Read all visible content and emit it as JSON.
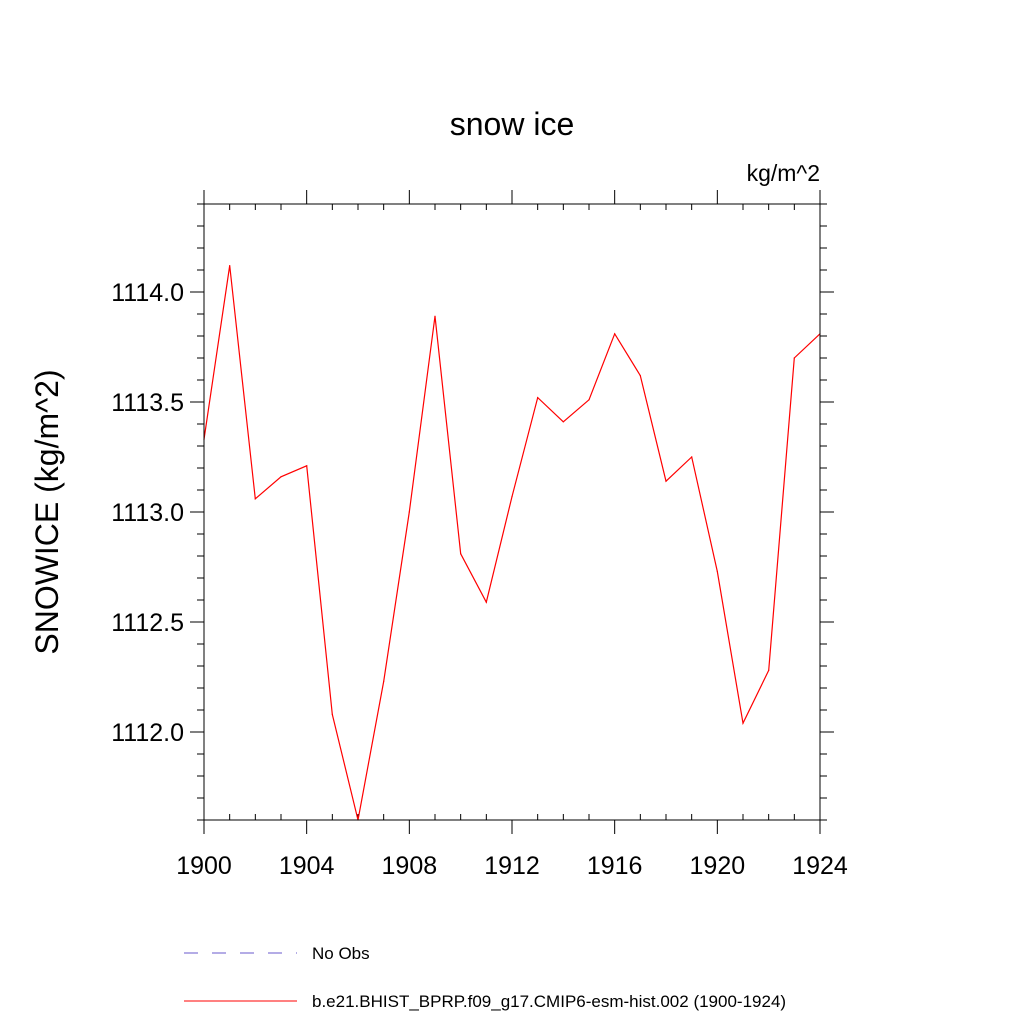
{
  "chart_data": {
    "type": "line",
    "title": "snow ice",
    "units_label": "kg/m^2",
    "ylabel": "SNOWICE  (kg/m^2)",
    "xlabel": "",
    "xlim": [
      1900,
      1924
    ],
    "ylim": [
      1111.6,
      1114.4
    ],
    "x_ticks": [
      1900,
      1904,
      1908,
      1912,
      1916,
      1920,
      1924
    ],
    "x_tick_labels": [
      "1900",
      "1904",
      "1908",
      "1912",
      "1916",
      "1920",
      "1924"
    ],
    "y_ticks": [
      1112.0,
      1112.5,
      1113.0,
      1113.5,
      1114.0
    ],
    "y_tick_labels": [
      "1112.0",
      "1112.5",
      "1113.0",
      "1113.5",
      "1114.0"
    ],
    "grid": false,
    "legend_position": "bottom",
    "series": [
      {
        "name": "b.e21.BHIST_BPRP.f09_g17.CMIP6-esm-hist.002 (1900-1924)",
        "color": "#ff0000",
        "style": "solid",
        "x": [
          1900,
          1901,
          1902,
          1903,
          1904,
          1905,
          1906,
          1907,
          1908,
          1909,
          1910,
          1911,
          1912,
          1913,
          1914,
          1915,
          1916,
          1917,
          1918,
          1919,
          1920,
          1921,
          1922,
          1923,
          1924
        ],
        "y": [
          1113.33,
          1114.12,
          1113.06,
          1113.16,
          1113.21,
          1112.08,
          1111.6,
          1112.23,
          1113.0,
          1113.89,
          1112.81,
          1112.59,
          1113.07,
          1113.52,
          1113.41,
          1113.51,
          1113.81,
          1113.62,
          1113.14,
          1113.25,
          1112.73,
          1112.04,
          1112.28,
          1113.7,
          1113.81
        ]
      }
    ],
    "legend": [
      {
        "label": "No Obs",
        "color": "#6a5acd",
        "style": "dashed"
      },
      {
        "label": "b.e21.BHIST_BPRP.f09_g17.CMIP6-esm-hist.002 (1900-1924)",
        "color": "#ff0000",
        "style": "solid"
      }
    ]
  }
}
